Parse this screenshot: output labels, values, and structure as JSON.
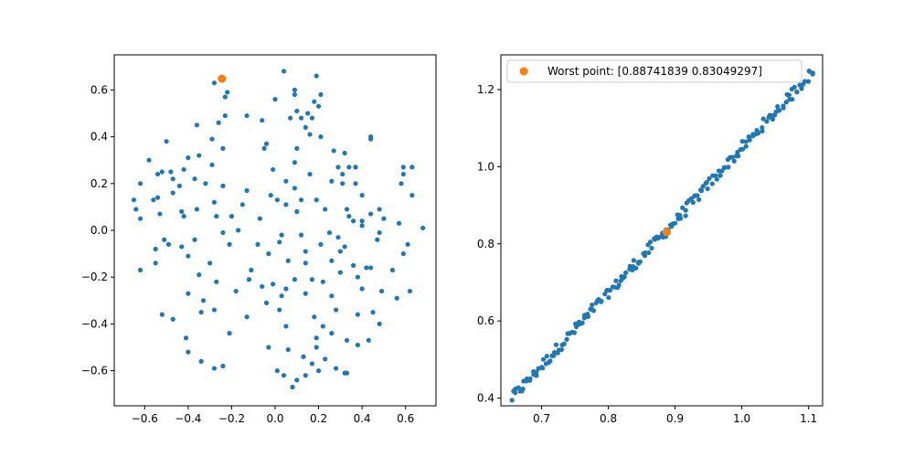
{
  "colors": {
    "cloud": "#1f77b4",
    "highlight": "#ff7f0e",
    "axes": "#000000",
    "legend_border": "#cccccc"
  },
  "chart_data": [
    {
      "type": "scatter",
      "title": "",
      "xlabel": "",
      "ylabel": "",
      "xlim": [
        -0.74,
        0.74
      ],
      "ylim": [
        -0.75,
        0.75
      ],
      "xticks": [
        -0.6,
        -0.4,
        -0.2,
        0.0,
        0.2,
        0.4,
        0.6
      ],
      "xtick_labels": [
        "−0.6",
        "−0.4",
        "−0.2",
        "0.0",
        "0.2",
        "0.4",
        "0.6"
      ],
      "yticks": [
        -0.6,
        -0.4,
        -0.2,
        0.0,
        0.2,
        0.4,
        0.6
      ],
      "ytick_labels": [
        "−0.6",
        "−0.4",
        "−0.2",
        "0.0",
        "0.2",
        "0.4",
        "0.6"
      ],
      "grid": false,
      "series": [
        {
          "color": "#1f77b4",
          "points": [
            [
              0.04,
              0.68
            ],
            [
              0.19,
              0.66
            ],
            [
              -0.28,
              0.63
            ],
            [
              -0.22,
              0.59
            ],
            [
              0.09,
              0.6
            ],
            [
              -0.23,
              0.57
            ],
            [
              0.09,
              0.58
            ],
            [
              0.21,
              0.58
            ],
            [
              0.18,
              0.55
            ],
            [
              0.0,
              0.56
            ],
            [
              0.2,
              0.53
            ],
            [
              0.1,
              0.51
            ],
            [
              0.15,
              0.5
            ],
            [
              0.12,
              0.48
            ],
            [
              0.07,
              0.48
            ],
            [
              0.17,
              0.48
            ],
            [
              -0.13,
              0.49
            ],
            [
              -0.23,
              0.49
            ],
            [
              -0.06,
              0.47
            ],
            [
              -0.26,
              0.46
            ],
            [
              -0.36,
              0.45
            ],
            [
              0.14,
              0.44
            ],
            [
              0.16,
              0.41
            ],
            [
              0.21,
              0.4
            ],
            [
              -0.29,
              0.39
            ],
            [
              0.44,
              0.4
            ],
            [
              0.44,
              0.39
            ],
            [
              -0.5,
              0.38
            ],
            [
              -0.04,
              0.37
            ],
            [
              -0.05,
              0.35
            ],
            [
              -0.24,
              0.35
            ],
            [
              0.1,
              0.35
            ],
            [
              0.27,
              0.34
            ],
            [
              -0.58,
              0.3
            ],
            [
              0.32,
              0.33
            ],
            [
              -0.35,
              0.32
            ],
            [
              -0.4,
              0.31
            ],
            [
              -0.29,
              0.28
            ],
            [
              0.09,
              0.29
            ],
            [
              -0.42,
              0.26
            ],
            [
              -0.52,
              0.25
            ],
            [
              0.29,
              0.27
            ],
            [
              0.34,
              0.27
            ],
            [
              0.37,
              0.27
            ],
            [
              0.59,
              0.27
            ],
            [
              0.63,
              0.27
            ],
            [
              -0.48,
              0.25
            ],
            [
              -0.54,
              0.24
            ],
            [
              -0.37,
              0.22
            ],
            [
              -0.47,
              0.22
            ],
            [
              -0.01,
              0.26
            ],
            [
              0.16,
              0.24
            ],
            [
              0.31,
              0.24
            ],
            [
              0.59,
              0.24
            ],
            [
              0.05,
              0.21
            ],
            [
              -0.62,
              0.2
            ],
            [
              -0.32,
              0.2
            ],
            [
              -0.24,
              0.19
            ],
            [
              0.26,
              0.21
            ],
            [
              0.37,
              0.2
            ],
            [
              0.31,
              0.2
            ],
            [
              0.58,
              0.2
            ],
            [
              -0.44,
              0.19
            ],
            [
              0.09,
              0.18
            ],
            [
              -0.13,
              0.17
            ],
            [
              -0.47,
              0.16
            ],
            [
              -0.54,
              0.14
            ],
            [
              -0.56,
              0.13
            ],
            [
              0.4,
              0.15
            ],
            [
              0.63,
              0.15
            ],
            [
              -0.02,
              0.15
            ],
            [
              -0.28,
              0.12
            ],
            [
              0.12,
              0.13
            ],
            [
              0.01,
              0.13
            ],
            [
              0.19,
              0.13
            ],
            [
              0.05,
              0.11
            ],
            [
              -0.65,
              0.13
            ],
            [
              -0.15,
              0.11
            ],
            [
              -0.64,
              0.09
            ],
            [
              -0.36,
              0.09
            ],
            [
              -0.43,
              0.08
            ],
            [
              -0.27,
              0.06
            ],
            [
              0.48,
              0.09
            ],
            [
              0.33,
              0.09
            ],
            [
              0.23,
              0.09
            ],
            [
              0.34,
              0.06
            ],
            [
              0.44,
              0.07
            ],
            [
              -0.42,
              0.06
            ],
            [
              -0.53,
              0.07
            ],
            [
              -0.2,
              0.06
            ],
            [
              0.5,
              0.05
            ],
            [
              0.1,
              0.08
            ],
            [
              0.4,
              0.04
            ],
            [
              0.36,
              0.04
            ],
            [
              0.57,
              0.03
            ],
            [
              -0.07,
              0.05
            ],
            [
              -0.62,
              0.05
            ],
            [
              0.68,
              0.01
            ],
            [
              0.4,
              0.02
            ],
            [
              0.48,
              -0.01
            ],
            [
              0.29,
              -0.03
            ],
            [
              -0.17,
              0.0
            ],
            [
              0.25,
              -0.01
            ],
            [
              -0.24,
              -0.01
            ],
            [
              -0.21,
              -0.06
            ],
            [
              0.03,
              -0.02
            ],
            [
              0.12,
              -0.02
            ],
            [
              -0.51,
              -0.04
            ],
            [
              0.21,
              -0.06
            ],
            [
              -0.08,
              -0.06
            ],
            [
              0.32,
              -0.07
            ],
            [
              0.47,
              -0.04
            ],
            [
              -0.37,
              -0.04
            ],
            [
              -0.49,
              -0.06
            ],
            [
              0.02,
              -0.05
            ],
            [
              0.61,
              -0.06
            ],
            [
              -0.43,
              -0.07
            ],
            [
              0.14,
              -0.09
            ],
            [
              0.3,
              -0.09
            ],
            [
              -0.55,
              -0.08
            ],
            [
              -0.03,
              -0.1
            ],
            [
              0.59,
              -0.1
            ],
            [
              -0.4,
              -0.11
            ],
            [
              0.26,
              -0.13
            ],
            [
              0.36,
              -0.15
            ],
            [
              0.06,
              -0.13
            ],
            [
              -0.3,
              -0.14
            ],
            [
              0.42,
              -0.16
            ],
            [
              0.44,
              -0.16
            ],
            [
              0.3,
              -0.18
            ],
            [
              -0.55,
              -0.14
            ],
            [
              0.14,
              -0.14
            ],
            [
              0.54,
              -0.17
            ],
            [
              -0.11,
              -0.17
            ],
            [
              -0.62,
              -0.17
            ],
            [
              -0.35,
              -0.19
            ],
            [
              0.38,
              -0.2
            ],
            [
              0.17,
              -0.21
            ],
            [
              0.22,
              -0.22
            ],
            [
              -0.12,
              -0.21
            ],
            [
              0.09,
              -0.21
            ],
            [
              -0.27,
              -0.22
            ],
            [
              -0.18,
              -0.26
            ],
            [
              -0.06,
              -0.24
            ],
            [
              0.05,
              -0.25
            ],
            [
              0.62,
              -0.26
            ],
            [
              0.4,
              -0.25
            ],
            [
              0.26,
              -0.28
            ],
            [
              0.03,
              -0.28
            ],
            [
              0.49,
              -0.26
            ],
            [
              -0.01,
              -0.23
            ],
            [
              0.14,
              -0.27
            ],
            [
              -0.4,
              -0.27
            ],
            [
              0.56,
              -0.29
            ],
            [
              -0.33,
              -0.3
            ],
            [
              -0.04,
              -0.31
            ],
            [
              -0.28,
              -0.34
            ],
            [
              0.02,
              -0.34
            ],
            [
              0.28,
              -0.34
            ],
            [
              -0.34,
              -0.35
            ],
            [
              -0.52,
              -0.36
            ],
            [
              0.38,
              -0.36
            ],
            [
              0.45,
              -0.35
            ],
            [
              0.18,
              -0.37
            ],
            [
              -0.13,
              -0.37
            ],
            [
              -0.47,
              -0.38
            ],
            [
              0.22,
              -0.41
            ],
            [
              0.05,
              -0.41
            ],
            [
              0.48,
              -0.4
            ],
            [
              0.26,
              -0.44
            ],
            [
              -0.21,
              -0.44
            ],
            [
              0.19,
              -0.46
            ],
            [
              -0.41,
              -0.46
            ],
            [
              0.33,
              -0.47
            ],
            [
              0.43,
              -0.47
            ],
            [
              0.38,
              -0.49
            ],
            [
              -0.03,
              -0.5
            ],
            [
              0.19,
              -0.5
            ],
            [
              0.06,
              -0.51
            ],
            [
              -0.4,
              -0.52
            ],
            [
              0.13,
              -0.54
            ],
            [
              0.23,
              -0.55
            ],
            [
              -0.34,
              -0.56
            ],
            [
              0.17,
              -0.57
            ],
            [
              0.28,
              -0.59
            ],
            [
              -0.28,
              -0.59
            ],
            [
              0.2,
              -0.6
            ],
            [
              0.01,
              -0.6
            ],
            [
              0.33,
              -0.61
            ],
            [
              0.14,
              -0.62
            ],
            [
              0.32,
              -0.61
            ],
            [
              0.04,
              -0.62
            ],
            [
              0.1,
              -0.64
            ],
            [
              0.08,
              -0.67
            ],
            [
              -0.24,
              -0.58
            ]
          ]
        },
        {
          "color": "#ff7f0e",
          "points": [
            [
              -0.245,
              0.648
            ]
          ]
        }
      ]
    },
    {
      "type": "scatter",
      "title": "",
      "xlabel": "",
      "ylabel": "",
      "xlim": [
        0.639,
        1.121
      ],
      "ylim": [
        0.38,
        1.29
      ],
      "xticks": [
        0.7,
        0.8,
        0.9,
        1.0,
        1.1
      ],
      "xtick_labels": [
        "0.7",
        "0.8",
        "0.9",
        "1.0",
        "1.1"
      ],
      "yticks": [
        0.4,
        0.6,
        0.8,
        1.0,
        1.2
      ],
      "yticks_labels_note": "",
      "ytick_labels": [
        "0.4",
        "0.6",
        "0.8",
        "1.0",
        "1.2"
      ],
      "grid": false,
      "legend": {
        "placement": "top-left",
        "entries": [
          "Worst point: [0.88741839 0.83049297]"
        ]
      },
      "series": [
        {
          "color": "#1f77b4",
          "line": {
            "x_start": 0.655,
            "x_end": 1.108,
            "y_start": 0.4,
            "y_end": 1.25,
            "count": 190,
            "jitter": 0.014
          }
        },
        {
          "name": "Worst point: [0.88741839 0.83049297]",
          "color": "#ff7f0e",
          "points": [
            [
              0.8874,
              0.8305
            ]
          ]
        }
      ]
    }
  ]
}
